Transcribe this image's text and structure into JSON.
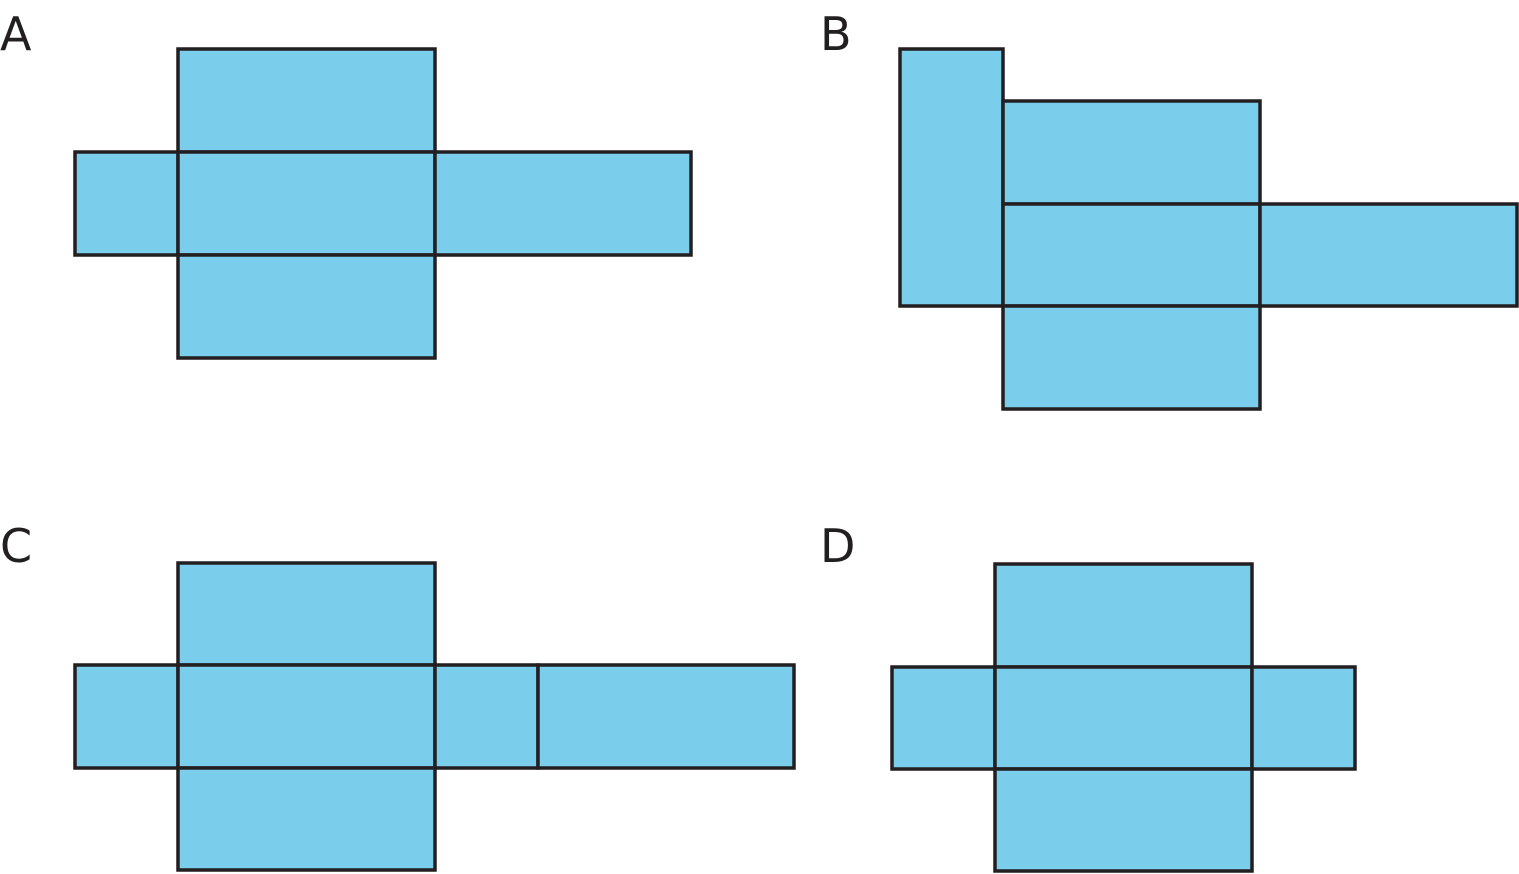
{
  "figures": [
    {
      "label": "A"
    },
    {
      "label": "B"
    },
    {
      "label": "C"
    },
    {
      "label": "D"
    }
  ],
  "colors": {
    "face_fill": "#7bcdec",
    "outline": "#231f20"
  }
}
